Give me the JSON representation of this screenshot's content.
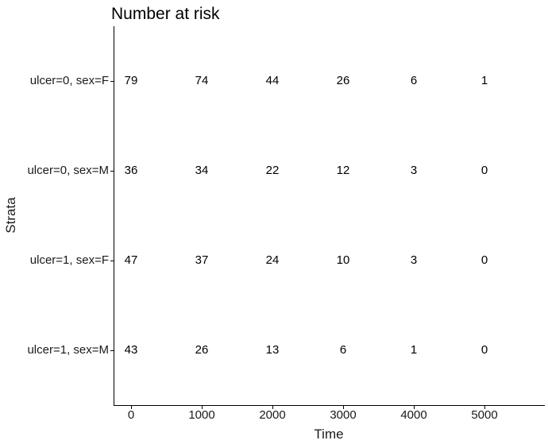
{
  "title": "Number at risk",
  "axes": {
    "x_label": "Time",
    "y_label": "Strata",
    "x_ticks": [
      "0",
      "1000",
      "2000",
      "3000",
      "4000",
      "5000"
    ]
  },
  "risk_table": {
    "rows": [
      {
        "label": "ulcer=0, sex=F",
        "values": [
          "79",
          "74",
          "44",
          "26",
          "6",
          "1"
        ]
      },
      {
        "label": "ulcer=0, sex=M",
        "values": [
          "36",
          "34",
          "22",
          "12",
          "3",
          "0"
        ]
      },
      {
        "label": "ulcer=1, sex=F",
        "values": [
          "47",
          "37",
          "24",
          "10",
          "3",
          "0"
        ]
      },
      {
        "label": "ulcer=1, sex=M",
        "values": [
          "43",
          "26",
          "13",
          "6",
          "1",
          "0"
        ]
      }
    ]
  },
  "chart_data": {
    "type": "table",
    "title": "Number at risk",
    "xlabel": "Time",
    "ylabel": "Strata",
    "x": [
      0,
      1000,
      2000,
      3000,
      4000,
      5000
    ],
    "series": [
      {
        "name": "ulcer=0, sex=F",
        "values": [
          79,
          74,
          44,
          26,
          6,
          1
        ]
      },
      {
        "name": "ulcer=0, sex=M",
        "values": [
          36,
          34,
          22,
          12,
          3,
          0
        ]
      },
      {
        "name": "ulcer=1, sex=F",
        "values": [
          47,
          37,
          24,
          10,
          3,
          0
        ]
      },
      {
        "name": "ulcer=1, sex=M",
        "values": [
          43,
          26,
          13,
          6,
          1,
          0
        ]
      }
    ],
    "xlim": [
      0,
      5000
    ],
    "grid": false,
    "legend": "none"
  },
  "colors": {
    "background": "#ffffff",
    "axis_line": "#000000",
    "axis_text": "#1a1a1a",
    "value_text": "#000000"
  }
}
